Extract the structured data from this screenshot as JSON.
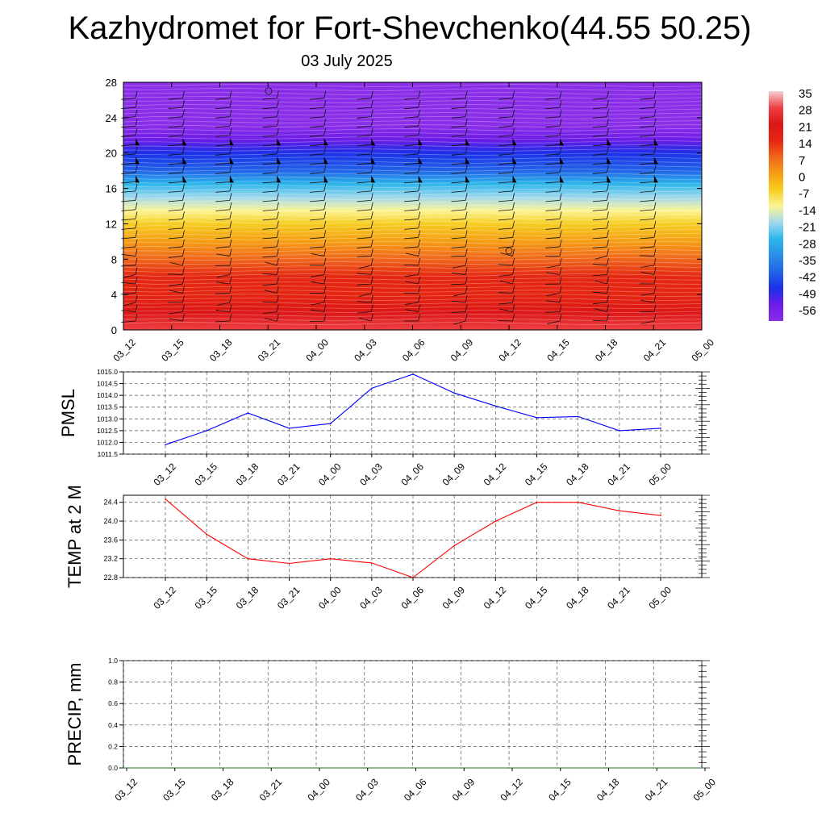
{
  "title": "Kazhydromet for Fort-Shevchenko(44.55 50.25)",
  "subtitle": "03 July 2025",
  "chart_data": [
    {
      "type": "heatmap",
      "title": "",
      "xlabel": "",
      "ylabel": "",
      "categories": [
        "03_12",
        "03_15",
        "03_18",
        "03_21",
        "04_00",
        "04_03",
        "04_06",
        "04_09",
        "04_12",
        "04_15",
        "04_18",
        "04_21",
        "05_00"
      ],
      "y_ticks": [
        0,
        4,
        8,
        12,
        16,
        20,
        24,
        28
      ],
      "ylim": [
        0,
        28
      ],
      "temperature_by_level": [
        {
          "level": 0,
          "value": 29
        },
        {
          "level": 2,
          "value": 25
        },
        {
          "level": 4,
          "value": 20
        },
        {
          "level": 6,
          "value": 14
        },
        {
          "level": 8,
          "value": 8
        },
        {
          "level": 10,
          "value": 2
        },
        {
          "level": 12,
          "value": -4
        },
        {
          "level": 13.5,
          "value": -10
        },
        {
          "level": 15,
          "value": -20
        },
        {
          "level": 16.5,
          "value": -28
        },
        {
          "level": 18,
          "value": -36
        },
        {
          "level": 20,
          "value": -46
        },
        {
          "level": 21.5,
          "value": -56
        },
        {
          "level": 23,
          "value": -62
        },
        {
          "level": 28,
          "value": -66
        }
      ],
      "colorbar": {
        "labels": [
          "35",
          "28",
          "21",
          "14",
          "7",
          "0",
          "-7",
          "-14",
          "-21",
          "-28",
          "-35",
          "-42",
          "-49",
          "-56"
        ],
        "colors": [
          "#f6d0d2",
          "#ee4044",
          "#dc1616",
          "#e52612",
          "#f0661c",
          "#f59d15",
          "#f6cd20",
          "#fbf595",
          "#a0d8ee",
          "#2cb6ea",
          "#2b8ee6",
          "#2264e8",
          "#1c30e8",
          "#6c1ce6",
          "#8a2ee8"
        ]
      },
      "wind_barbs": "present"
    },
    {
      "type": "line",
      "title": "",
      "xlabel": "",
      "ylabel": "PMSL",
      "categories": [
        "03_12",
        "03_15",
        "03_18",
        "03_21",
        "04_00",
        "04_03",
        "04_06",
        "04_09",
        "04_12",
        "04_15",
        "04_18",
        "04_21",
        "05_00"
      ],
      "series": [
        {
          "values": [
            1011.9,
            1012.5,
            1013.25,
            1012.6,
            1012.8,
            1014.3,
            1014.9,
            1014.1,
            1013.55,
            1013.05,
            1013.1,
            1012.5,
            1012.6
          ]
        }
      ],
      "ylim": [
        1011.5,
        1015.0
      ],
      "y_ticks": [
        "1011.5",
        "1012.0",
        "1012.5",
        "1013.0",
        "1013.5",
        "1014.0",
        "1014.5",
        "1015.0"
      ],
      "color": "#0000ff",
      "grid": true
    },
    {
      "type": "line",
      "title": "",
      "xlabel": "",
      "ylabel": "TEMP at 2 M",
      "categories": [
        "03_12",
        "03_15",
        "03_18",
        "03_21",
        "04_00",
        "04_03",
        "04_06",
        "04_09",
        "04_12",
        "04_15",
        "04_18",
        "04_21",
        "05_00"
      ],
      "series": [
        {
          "values": [
            24.47,
            23.72,
            23.2,
            23.1,
            23.2,
            23.11,
            22.8,
            23.48,
            24.0,
            24.4,
            24.4,
            24.22,
            24.12
          ]
        }
      ],
      "ylim": [
        22.8,
        24.55
      ],
      "y_ticks": [
        "22.8",
        "23.2",
        "23.6",
        "24.0",
        "24.4"
      ],
      "color": "#ff0000",
      "grid": true
    },
    {
      "type": "line",
      "title": "",
      "xlabel": "",
      "ylabel": "PRECIP, mm",
      "categories": [
        "03_12",
        "03_15",
        "03_18",
        "03_21",
        "04_00",
        "04_03",
        "04_06",
        "04_09",
        "04_12",
        "04_15",
        "04_18",
        "04_21",
        "05_00"
      ],
      "series": [
        {
          "values": [
            0,
            0,
            0,
            0,
            0,
            0,
            0,
            0,
            0,
            0,
            0,
            0,
            0
          ]
        }
      ],
      "ylim": [
        0,
        1.0
      ],
      "y_ticks": [
        "0.0",
        "0.2",
        "0.4",
        "0.6",
        "0.8",
        "1.0"
      ],
      "color": "#1a7a1a",
      "grid": true
    }
  ]
}
